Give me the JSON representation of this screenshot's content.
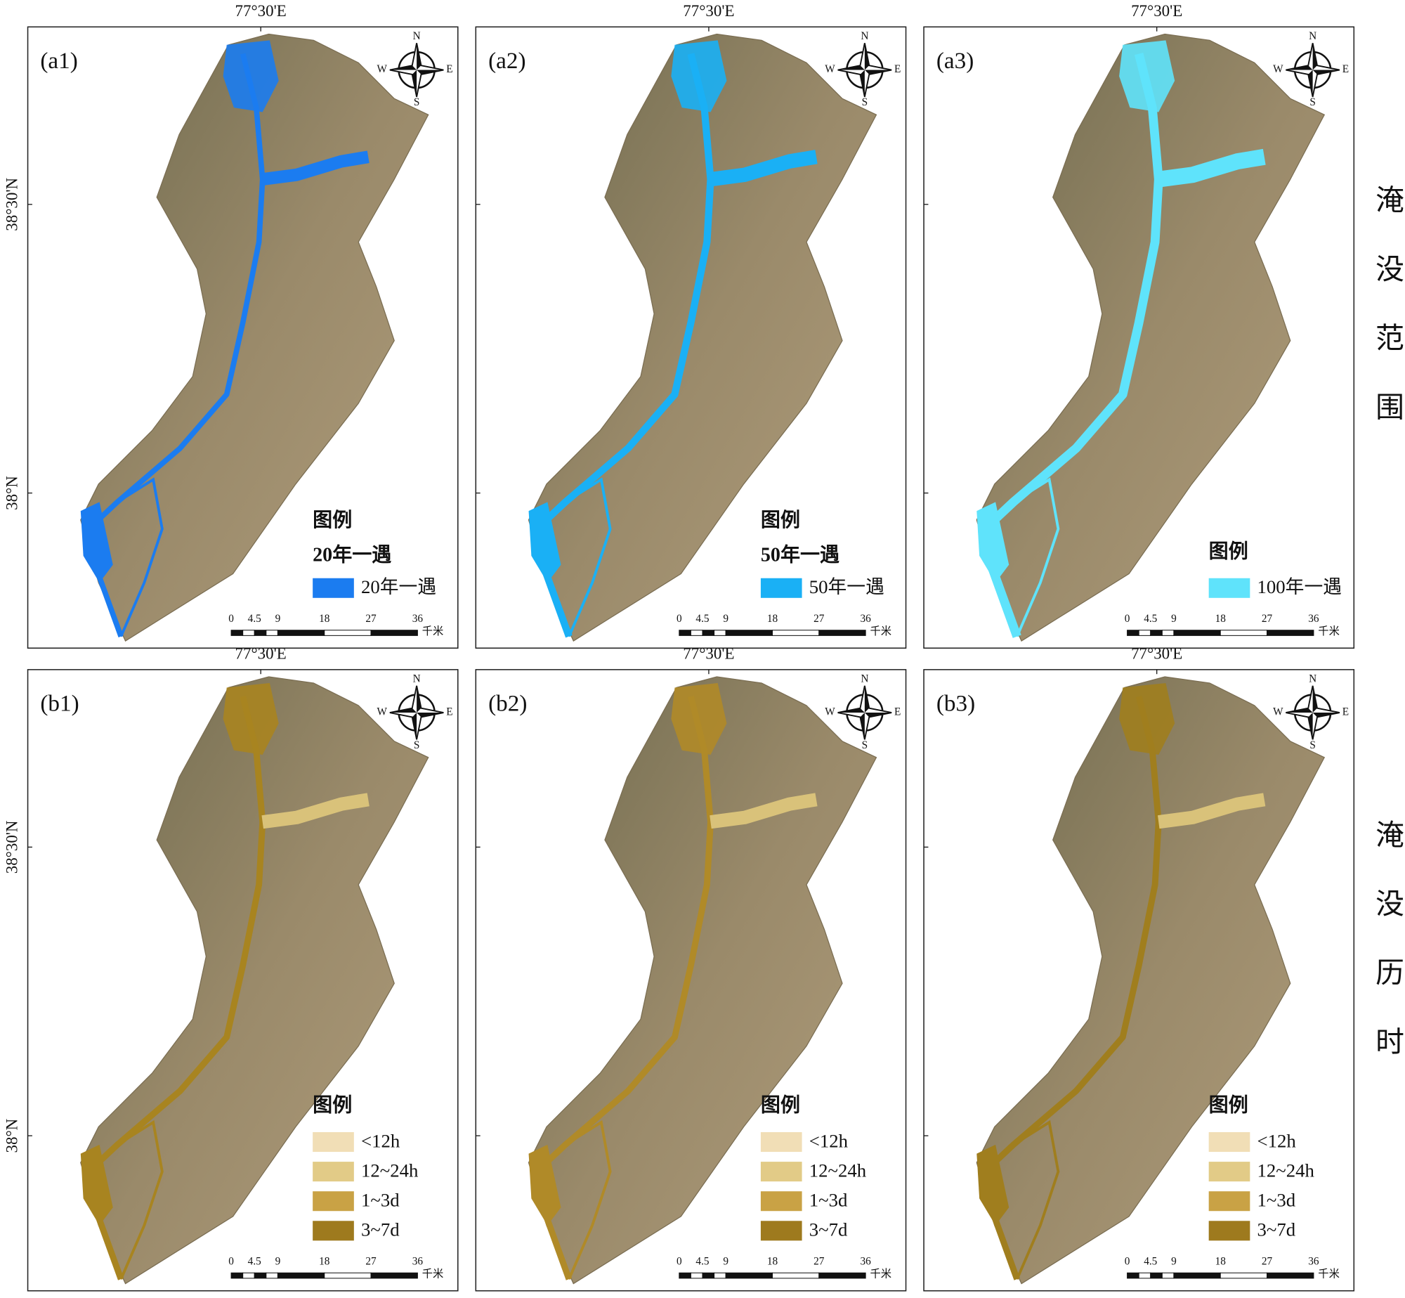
{
  "graticule": {
    "longitude": "77°30'E",
    "latitudes": [
      "38°30'N",
      "38°N"
    ]
  },
  "row_titles": [
    "淹没范围",
    "淹没历时"
  ],
  "compass": {
    "N": "N",
    "E": "E",
    "S": "S",
    "W": "W"
  },
  "scale_bar": {
    "ticks": [
      0,
      4.5,
      9,
      18,
      27,
      36
    ],
    "unit": "千米"
  },
  "panels": [
    {
      "label": "(a1)",
      "legend": {
        "title": "图例",
        "subtitle": "20年一遇",
        "items": [
          {
            "label": "20年一遇",
            "color": "#1b7cf0"
          }
        ]
      }
    },
    {
      "label": "(a2)",
      "legend": {
        "title": "图例",
        "subtitle": "50年一遇",
        "items": [
          {
            "label": "50年一遇",
            "color": "#1ab0f5"
          }
        ]
      }
    },
    {
      "label": "(a3)",
      "legend": {
        "title": "图例",
        "items": [
          {
            "label": "100年一遇",
            "color": "#5fe3fb"
          }
        ]
      }
    },
    {
      "label": "(b1)",
      "legend": {
        "title": "图例",
        "items": [
          {
            "label": "<12h",
            "color": "#f1deb6"
          },
          {
            "label": "12~24h",
            "color": "#e2cb87"
          },
          {
            "label": "1~3d",
            "color": "#c9a245"
          },
          {
            "label": "3~7d",
            "color": "#9e7a1e"
          }
        ]
      }
    },
    {
      "label": "(b2)",
      "legend": {
        "title": "图例",
        "items": [
          {
            "label": "<12h",
            "color": "#f1deb6"
          },
          {
            "label": "12~24h",
            "color": "#e2cb87"
          },
          {
            "label": "1~3d",
            "color": "#c9a245"
          },
          {
            "label": "3~7d",
            "color": "#9e7a1e"
          }
        ]
      }
    },
    {
      "label": "(b3)",
      "legend": {
        "title": "图例",
        "items": [
          {
            "label": "<12h",
            "color": "#f1deb6"
          },
          {
            "label": "12~24h",
            "color": "#e2cb87"
          },
          {
            "label": "1~3d",
            "color": "#c9a245"
          },
          {
            "label": "3~7d",
            "color": "#9e7a1e"
          }
        ]
      }
    }
  ]
}
